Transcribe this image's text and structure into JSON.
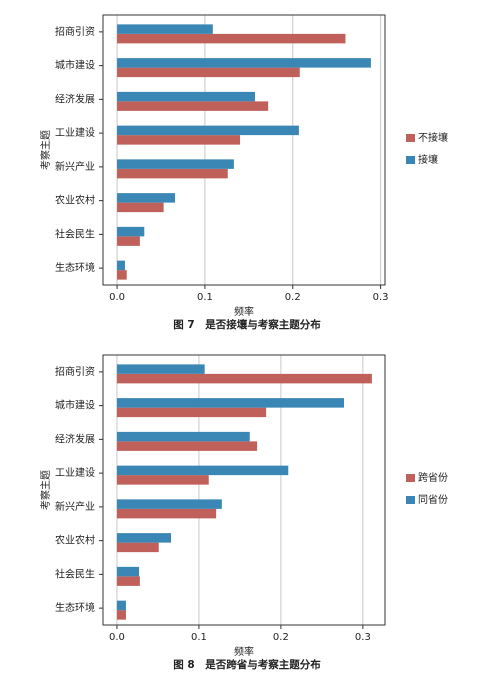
{
  "chart_data": [
    {
      "type": "bar",
      "orientation": "horizontal",
      "title": "图 7　是否接壤与考察主题分布",
      "x_label": "频率",
      "y_label": "考察主题",
      "categories": [
        "招商引资",
        "城市建设",
        "经济发展",
        "工业建设",
        "新兴产业",
        "农业农村",
        "社会民生",
        "生态环境"
      ],
      "series": [
        {
          "name": "不接壤",
          "color": "#c0605a",
          "values": [
            0.26,
            0.208,
            0.172,
            0.14,
            0.126,
            0.053,
            0.026,
            0.011
          ]
        },
        {
          "name": "接壤",
          "color": "#3a87b5",
          "values": [
            0.109,
            0.289,
            0.157,
            0.207,
            0.133,
            0.066,
            0.031,
            0.009
          ]
        }
      ],
      "xlim": [
        -0.016,
        0.305
      ],
      "xticks": [
        {
          "value": 0,
          "label": "0.0"
        },
        0.1,
        0.2,
        0.3
      ],
      "grid": true,
      "legend": "right"
    },
    {
      "type": "bar",
      "orientation": "horizontal",
      "title": "图 8　是否跨省与考察主题分布",
      "x_label": "频率",
      "y_label": "考察主题",
      "categories": [
        "招商引资",
        "城市建设",
        "经济发展",
        "工业建设",
        "新兴产业",
        "农业农村",
        "社会民生",
        "生态环境"
      ],
      "series": [
        {
          "name": "跨省份",
          "color": "#c0605a",
          "values": [
            0.311,
            0.182,
            0.171,
            0.112,
            0.121,
            0.051,
            0.028,
            0.011
          ]
        },
        {
          "name": "同省份",
          "color": "#3a87b5",
          "values": [
            0.107,
            0.277,
            0.162,
            0.209,
            0.128,
            0.066,
            0.027,
            0.011
          ]
        }
      ],
      "xlim": [
        -0.017,
        0.327
      ],
      "xticks": [
        {
          "value": 0,
          "label": "0.0"
        },
        0.1,
        0.2,
        0.3
      ],
      "grid": true,
      "legend": "right"
    }
  ]
}
